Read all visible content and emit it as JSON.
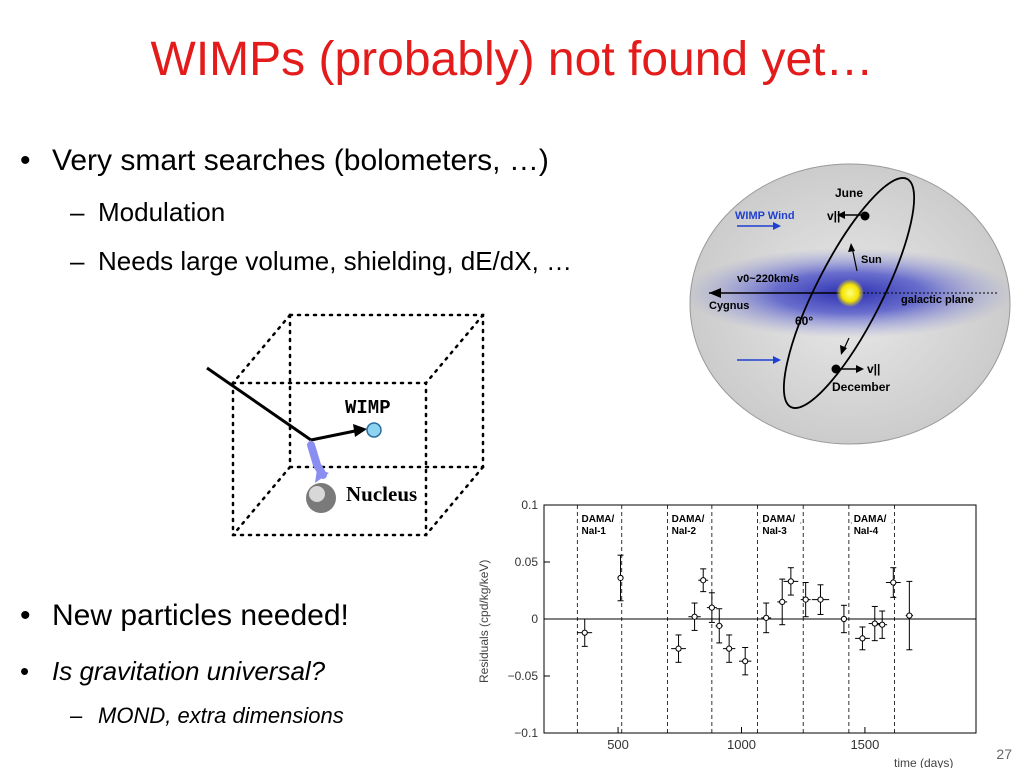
{
  "slide": {
    "title": "WIMPs (probably) not found yet…",
    "slide_number": "27",
    "bullets": [
      {
        "text": "Very smart searches (bolometers, …)"
      },
      {
        "text": "Modulation"
      },
      {
        "text": "Needs large volume, shielding, dE/dX, …"
      },
      {
        "text": "New particles needed!"
      },
      {
        "text": "Is gravitation universal?"
      },
      {
        "text": "MOND, extra dimensions"
      }
    ]
  },
  "detector_diagram": {
    "wimp_label": "WIMP",
    "nucleus_label": "Nucleus"
  },
  "wind_diagram": {
    "june_label": "June",
    "v_parallel_top": "v||",
    "wimp_wind_label": "WIMP Wind",
    "sun_label": "Sun",
    "v0_label": "v0~220km/s",
    "cygnus_label": "Cygnus",
    "galactic_plane_label": "galactic plane",
    "angle_label": "60°",
    "v_parallel_bottom": "v||",
    "december_label": "December"
  },
  "chart_data": {
    "type": "scatter",
    "xlabel": "time (days)",
    "ylabel": "Residuals (cpd/kg/keV)",
    "xlim": [
      200,
      1950
    ],
    "ylim": [
      -0.1,
      0.1
    ],
    "x_ticks": [
      500,
      1000,
      1500
    ],
    "y_ticks": [
      0.1,
      0.05,
      0,
      -0.05,
      -0.1
    ],
    "x_tick_labels": [
      "500",
      "1000",
      "1500"
    ],
    "y_tick_labels": [
      "0.1",
      "0.05",
      "0",
      "−0.05",
      "−0.1"
    ],
    "period_boundaries": [
      335,
      515,
      700,
      880,
      1065,
      1250,
      1435,
      1620
    ],
    "periods": [
      {
        "label1": "DAMA/",
        "label2": "NaI-1",
        "start": 335,
        "end": 515
      },
      {
        "label1": "DAMA/",
        "label2": "NaI-2",
        "start": 700,
        "end": 880
      },
      {
        "label1": "DAMA/",
        "label2": "NaI-3",
        "start": 1065,
        "end": 1250
      },
      {
        "label1": "DAMA/",
        "label2": "NaI-4",
        "start": 1435,
        "end": 1620
      }
    ],
    "points": [
      {
        "x": 365,
        "y": -0.012,
        "xerr": 30,
        "yerr": 0.012
      },
      {
        "x": 510,
        "y": 0.036,
        "xerr": 10,
        "yerr": 0.02
      },
      {
        "x": 745,
        "y": -0.026,
        "xerr": 30,
        "yerr": 0.012
      },
      {
        "x": 810,
        "y": 0.002,
        "xerr": 25,
        "yerr": 0.012
      },
      {
        "x": 845,
        "y": 0.034,
        "xerr": 20,
        "yerr": 0.01
      },
      {
        "x": 880,
        "y": 0.01,
        "xerr": 20,
        "yerr": 0.013
      },
      {
        "x": 910,
        "y": -0.006,
        "xerr": 15,
        "yerr": 0.015
      },
      {
        "x": 950,
        "y": -0.026,
        "xerr": 25,
        "yerr": 0.012
      },
      {
        "x": 1015,
        "y": -0.037,
        "xerr": 25,
        "yerr": 0.012
      },
      {
        "x": 1100,
        "y": 0.001,
        "xerr": 20,
        "yerr": 0.013
      },
      {
        "x": 1165,
        "y": 0.015,
        "xerr": 20,
        "yerr": 0.02
      },
      {
        "x": 1200,
        "y": 0.033,
        "xerr": 30,
        "yerr": 0.012
      },
      {
        "x": 1260,
        "y": 0.017,
        "xerr": 20,
        "yerr": 0.015
      },
      {
        "x": 1320,
        "y": 0.017,
        "xerr": 35,
        "yerr": 0.013
      },
      {
        "x": 1415,
        "y": 0.0,
        "xerr": 30,
        "yerr": 0.012
      },
      {
        "x": 1490,
        "y": -0.017,
        "xerr": 30,
        "yerr": 0.01
      },
      {
        "x": 1540,
        "y": -0.004,
        "xerr": 25,
        "yerr": 0.015
      },
      {
        "x": 1570,
        "y": -0.005,
        "xerr": 20,
        "yerr": 0.012
      },
      {
        "x": 1615,
        "y": 0.032,
        "xerr": 30,
        "yerr": 0.013
      },
      {
        "x": 1680,
        "y": 0.003,
        "xerr": 15,
        "yerr": 0.03
      }
    ]
  }
}
